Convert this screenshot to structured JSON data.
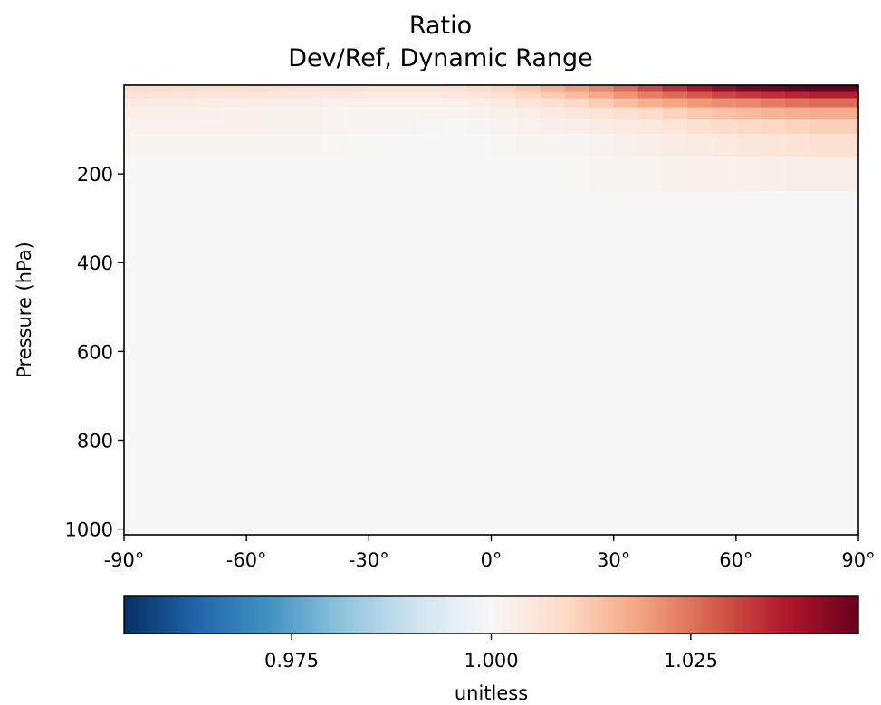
{
  "chart_data": {
    "type": "heatmap",
    "title": "Ratio",
    "subtitle": "Dev/Ref, Dynamic Range",
    "xlabel": "",
    "ylabel": "Pressure (hPa)",
    "xlim": [
      -90,
      90
    ],
    "ylim": [
      1013,
      0
    ],
    "x_ticks": [
      -90,
      -60,
      -30,
      0,
      30,
      60,
      90
    ],
    "x_tick_labels": [
      "-90°",
      "-60°",
      "-30°",
      "0°",
      "30°",
      "60°",
      "90°"
    ],
    "y_ticks": [
      200,
      400,
      600,
      800,
      1000
    ],
    "y_tick_labels": [
      "200",
      "400",
      "600",
      "800",
      "1000"
    ],
    "colormap": "RdBu_r",
    "clim": [
      0.954,
      1.046
    ],
    "colorbar": {
      "label": "unitless",
      "ticks": [
        0.975,
        1.0,
        1.025
      ],
      "tick_labels": [
        "0.975",
        "1.000",
        "1.025"
      ],
      "orientation": "horizontal",
      "placement": "bottom"
    },
    "rows": [
      {
        "p_top": 0,
        "p_bottom": 15,
        "latitudes": [
          -90,
          -60,
          -30,
          -10,
          0,
          10,
          20,
          30,
          40,
          50,
          60,
          70,
          80,
          90
        ],
        "values": [
          1.009,
          1.008,
          1.007,
          1.007,
          1.009,
          1.013,
          1.019,
          1.024,
          1.031,
          1.037,
          1.043,
          1.045,
          1.046,
          1.046
        ]
      },
      {
        "p_top": 15,
        "p_bottom": 30,
        "latitudes": [
          -90,
          -60,
          -30,
          -10,
          0,
          10,
          20,
          30,
          40,
          50,
          60,
          70,
          80,
          90
        ],
        "values": [
          1.006,
          1.005,
          1.004,
          1.004,
          1.006,
          1.01,
          1.014,
          1.019,
          1.024,
          1.028,
          1.032,
          1.034,
          1.036,
          1.036
        ]
      },
      {
        "p_top": 30,
        "p_bottom": 50,
        "latitudes": [
          -90,
          -60,
          -30,
          -10,
          0,
          10,
          20,
          30,
          40,
          50,
          60,
          70,
          80,
          90
        ],
        "values": [
          1.004,
          1.003,
          1.002,
          1.002,
          1.003,
          1.006,
          1.009,
          1.013,
          1.017,
          1.02,
          1.022,
          1.024,
          1.026,
          1.026
        ]
      },
      {
        "p_top": 50,
        "p_bottom": 75,
        "latitudes": [
          -90,
          -60,
          -30,
          -10,
          0,
          10,
          20,
          30,
          40,
          50,
          60,
          70,
          80,
          90
        ],
        "values": [
          1.003,
          1.002,
          1.001,
          1.001,
          1.002,
          1.003,
          1.005,
          1.007,
          1.009,
          1.012,
          1.014,
          1.016,
          1.017,
          1.017
        ]
      },
      {
        "p_top": 75,
        "p_bottom": 110,
        "latitudes": [
          -90,
          -60,
          -30,
          -10,
          0,
          10,
          20,
          30,
          40,
          50,
          60,
          70,
          80,
          90
        ],
        "values": [
          1.002,
          1.002,
          1.001,
          1.0,
          1.001,
          1.002,
          1.003,
          1.004,
          1.005,
          1.007,
          1.009,
          1.01,
          1.011,
          1.011
        ]
      },
      {
        "p_top": 110,
        "p_bottom": 160,
        "latitudes": [
          -90,
          -60,
          -30,
          -10,
          0,
          10,
          20,
          30,
          40,
          50,
          60,
          70,
          80,
          90
        ],
        "values": [
          1.001,
          1.001,
          1.0,
          1.0,
          1.0,
          1.001,
          1.001,
          1.002,
          1.003,
          1.004,
          1.005,
          1.006,
          1.007,
          1.007
        ]
      },
      {
        "p_top": 160,
        "p_bottom": 240,
        "latitudes": [
          -90,
          -60,
          -30,
          -10,
          0,
          10,
          20,
          30,
          40,
          50,
          60,
          70,
          80,
          90
        ],
        "values": [
          1.0,
          1.0,
          1.0,
          1.0,
          1.0,
          1.0,
          1.0,
          1.001,
          1.001,
          1.002,
          1.002,
          1.003,
          1.003,
          1.003
        ]
      },
      {
        "p_top": 240,
        "p_bottom": 1013,
        "latitudes": [
          -90,
          90
        ],
        "values": [
          1.0,
          1.0
        ]
      }
    ]
  }
}
